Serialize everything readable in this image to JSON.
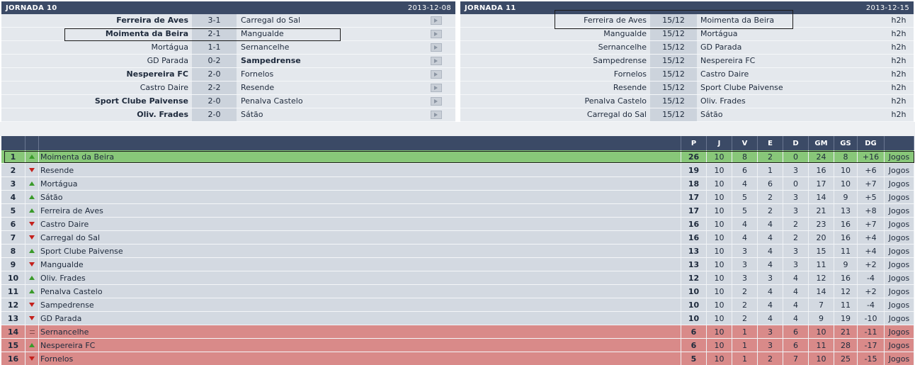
{
  "jornada10": {
    "title": "JORNADA 10",
    "date": "2013-12-08",
    "matches": [
      {
        "home": "Ferreira de Aves",
        "score": "3-1",
        "away": "Carregal do Sal",
        "winner": "home"
      },
      {
        "home": "Moimenta da Beira",
        "score": "2-1",
        "away": "Mangualde",
        "winner": "home"
      },
      {
        "home": "Mortágua",
        "score": "1-1",
        "away": "Sernancelhe",
        "winner": "none"
      },
      {
        "home": "GD Parada",
        "score": "0-2",
        "away": "Sampedrense",
        "winner": "away"
      },
      {
        "home": "Nespereira FC",
        "score": "2-0",
        "away": "Fornelos",
        "winner": "home"
      },
      {
        "home": "Castro Daire",
        "score": "2-2",
        "away": "Resende",
        "winner": "none"
      },
      {
        "home": "Sport Clube Paivense",
        "score": "2-0",
        "away": "Penalva Castelo",
        "winner": "home"
      },
      {
        "home": "Oliv. Frades",
        "score": "2-0",
        "away": "Sátão",
        "winner": "home"
      }
    ]
  },
  "jornada11": {
    "title": "JORNADA 11",
    "date": "2013-12-15",
    "link_label": "h2h",
    "matches": [
      {
        "home": "Ferreira de Aves",
        "date": "15/12",
        "away": "Moimenta da Beira"
      },
      {
        "home": "Mangualde",
        "date": "15/12",
        "away": "Mortágua"
      },
      {
        "home": "Sernancelhe",
        "date": "15/12",
        "away": "GD Parada"
      },
      {
        "home": "Sampedrense",
        "date": "15/12",
        "away": "Nespereira FC"
      },
      {
        "home": "Fornelos",
        "date": "15/12",
        "away": "Castro Daire"
      },
      {
        "home": "Resende",
        "date": "15/12",
        "away": "Sport Clube Paivense"
      },
      {
        "home": "Penalva Castelo",
        "date": "15/12",
        "away": "Oliv. Frades"
      },
      {
        "home": "Carregal do Sal",
        "date": "15/12",
        "away": "Sátão"
      }
    ]
  },
  "standings": {
    "headers": {
      "p": "P",
      "j": "J",
      "v": "V",
      "e": "E",
      "d": "D",
      "gm": "GM",
      "gs": "GS",
      "dg": "DG"
    },
    "link_label": "Jogos",
    "colors": {
      "promotion": "#88c779",
      "relegation": "#d98a89",
      "normal": "#d3d9e1",
      "arrow_up": "#3a9a2a",
      "arrow_down": "#c4201c"
    },
    "rows": [
      {
        "pos": "1",
        "trend": "up",
        "team": "Moimenta da Beira",
        "p": "26",
        "j": "10",
        "v": "8",
        "e": "2",
        "d": "0",
        "gm": "24",
        "gs": "8",
        "dg": "+16",
        "zone": "promo"
      },
      {
        "pos": "2",
        "trend": "down",
        "team": "Resende",
        "p": "19",
        "j": "10",
        "v": "6",
        "e": "1",
        "d": "3",
        "gm": "16",
        "gs": "10",
        "dg": "+6",
        "zone": ""
      },
      {
        "pos": "3",
        "trend": "up",
        "team": "Mortágua",
        "p": "18",
        "j": "10",
        "v": "4",
        "e": "6",
        "d": "0",
        "gm": "17",
        "gs": "10",
        "dg": "+7",
        "zone": ""
      },
      {
        "pos": "4",
        "trend": "up",
        "team": "Sátão",
        "p": "17",
        "j": "10",
        "v": "5",
        "e": "2",
        "d": "3",
        "gm": "14",
        "gs": "9",
        "dg": "+5",
        "zone": ""
      },
      {
        "pos": "5",
        "trend": "up",
        "team": "Ferreira de Aves",
        "p": "17",
        "j": "10",
        "v": "5",
        "e": "2",
        "d": "3",
        "gm": "21",
        "gs": "13",
        "dg": "+8",
        "zone": ""
      },
      {
        "pos": "6",
        "trend": "down",
        "team": "Castro Daire",
        "p": "16",
        "j": "10",
        "v": "4",
        "e": "4",
        "d": "2",
        "gm": "23",
        "gs": "16",
        "dg": "+7",
        "zone": ""
      },
      {
        "pos": "7",
        "trend": "down",
        "team": "Carregal do Sal",
        "p": "16",
        "j": "10",
        "v": "4",
        "e": "4",
        "d": "2",
        "gm": "20",
        "gs": "16",
        "dg": "+4",
        "zone": ""
      },
      {
        "pos": "8",
        "trend": "up",
        "team": "Sport Clube Paivense",
        "p": "13",
        "j": "10",
        "v": "3",
        "e": "4",
        "d": "3",
        "gm": "15",
        "gs": "11",
        "dg": "+4",
        "zone": ""
      },
      {
        "pos": "9",
        "trend": "down",
        "team": "Mangualde",
        "p": "13",
        "j": "10",
        "v": "3",
        "e": "4",
        "d": "3",
        "gm": "11",
        "gs": "9",
        "dg": "+2",
        "zone": ""
      },
      {
        "pos": "10",
        "trend": "up",
        "team": "Oliv. Frades",
        "p": "12",
        "j": "10",
        "v": "3",
        "e": "3",
        "d": "4",
        "gm": "12",
        "gs": "16",
        "dg": "-4",
        "zone": ""
      },
      {
        "pos": "11",
        "trend": "up",
        "team": "Penalva Castelo",
        "p": "10",
        "j": "10",
        "v": "2",
        "e": "4",
        "d": "4",
        "gm": "14",
        "gs": "12",
        "dg": "+2",
        "zone": ""
      },
      {
        "pos": "12",
        "trend": "down",
        "team": "Sampedrense",
        "p": "10",
        "j": "10",
        "v": "2",
        "e": "4",
        "d": "4",
        "gm": "7",
        "gs": "11",
        "dg": "-4",
        "zone": ""
      },
      {
        "pos": "13",
        "trend": "down",
        "team": "GD Parada",
        "p": "10",
        "j": "10",
        "v": "2",
        "e": "4",
        "d": "4",
        "gm": "9",
        "gs": "19",
        "dg": "-10",
        "zone": ""
      },
      {
        "pos": "14",
        "trend": "same",
        "team": "Sernancelhe",
        "p": "6",
        "j": "10",
        "v": "1",
        "e": "3",
        "d": "6",
        "gm": "10",
        "gs": "21",
        "dg": "-11",
        "zone": "releg"
      },
      {
        "pos": "15",
        "trend": "up",
        "team": "Nespereira FC",
        "p": "6",
        "j": "10",
        "v": "1",
        "e": "3",
        "d": "6",
        "gm": "11",
        "gs": "28",
        "dg": "-17",
        "zone": "releg"
      },
      {
        "pos": "16",
        "trend": "down",
        "team": "Fornelos",
        "p": "5",
        "j": "10",
        "v": "1",
        "e": "2",
        "d": "7",
        "gm": "10",
        "gs": "25",
        "dg": "-15",
        "zone": "releg"
      }
    ]
  }
}
